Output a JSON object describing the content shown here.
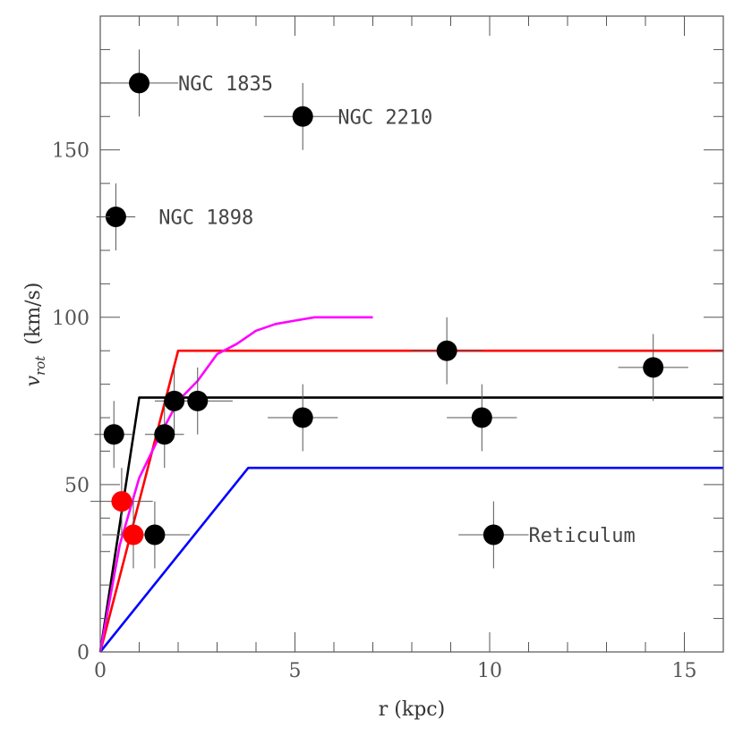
{
  "chart_data": {
    "type": "scatter",
    "xlabel": "r (kpc)",
    "ylabel_main": "v",
    "ylabel_sub": "rot",
    "ylabel_unit": "(km/s)",
    "xlim": [
      0,
      16
    ],
    "ylim": [
      0,
      190
    ],
    "x_ticks": [
      0,
      5,
      10,
      15
    ],
    "x_tick_labels": [
      "0",
      "5",
      "10",
      "15"
    ],
    "y_ticks": [
      0,
      50,
      100,
      150
    ],
    "y_tick_labels": [
      "0",
      "50",
      "100",
      "150"
    ],
    "minor_x": 1,
    "minor_y": 10,
    "grid": false,
    "colors": {
      "black": "#000000",
      "red": "#ff0000",
      "blue": "#0000ff",
      "magenta": "#ff00ff",
      "errorbar": "#555555"
    },
    "points_black": [
      {
        "x": 1.0,
        "y": 170,
        "xerr": 1.0,
        "yerr": 10
      },
      {
        "x": 5.2,
        "y": 160,
        "xerr": 1.0,
        "yerr": 10
      },
      {
        "x": 0.4,
        "y": 130,
        "xerr": 0.5,
        "yerr": 10
      },
      {
        "x": 0.35,
        "y": 65,
        "xerr": 0.5,
        "yerr": 10
      },
      {
        "x": 1.65,
        "y": 65,
        "xerr": 0.5,
        "yerr": 10
      },
      {
        "x": 1.9,
        "y": 75,
        "xerr": 0.5,
        "yerr": 10
      },
      {
        "x": 2.5,
        "y": 75,
        "xerr": 0.9,
        "yerr": 10
      },
      {
        "x": 1.4,
        "y": 35,
        "xerr": 0.9,
        "yerr": 10
      },
      {
        "x": 5.2,
        "y": 70,
        "xerr": 0.9,
        "yerr": 10
      },
      {
        "x": 8.9,
        "y": 90,
        "xerr": 0.9,
        "yerr": 10
      },
      {
        "x": 9.8,
        "y": 70,
        "xerr": 0.9,
        "yerr": 10
      },
      {
        "x": 10.1,
        "y": 35,
        "xerr": 0.9,
        "yerr": 10
      },
      {
        "x": 14.2,
        "y": 85,
        "xerr": 0.9,
        "yerr": 10
      }
    ],
    "points_red": [
      {
        "x": 0.55,
        "y": 45,
        "xerr": 0.8,
        "yerr": 10
      },
      {
        "x": 0.85,
        "y": 35,
        "xerr": 0.8,
        "yerr": 10
      }
    ],
    "series": [
      {
        "color": "#000000",
        "x": [
          0,
          1.0,
          16
        ],
        "y": [
          0,
          76,
          76
        ]
      },
      {
        "color": "#ff0000",
        "x": [
          0,
          2.0,
          16
        ],
        "y": [
          0,
          90,
          90
        ]
      },
      {
        "color": "#0000ff",
        "x": [
          0,
          3.8,
          16
        ],
        "y": [
          0,
          55,
          55
        ]
      },
      {
        "color": "#ff00ff",
        "x": [
          0,
          0.5,
          1.0,
          1.5,
          2.0,
          2.5,
          3.0,
          3.5,
          4.0,
          4.5,
          5.0,
          5.5,
          6.0,
          7.0
        ],
        "y": [
          0,
          32,
          52,
          64,
          75,
          81,
          89,
          92,
          96,
          98,
          99,
          100,
          100,
          100
        ]
      }
    ],
    "annotations": [
      {
        "text": "NGC 1835",
        "x": 2.0,
        "y": 170
      },
      {
        "text": "NGC 2210",
        "x": 6.1,
        "y": 160
      },
      {
        "text": "NGC 1898",
        "x": 1.5,
        "y": 130
      },
      {
        "text": "Reticulum",
        "x": 11.0,
        "y": 35
      }
    ]
  }
}
